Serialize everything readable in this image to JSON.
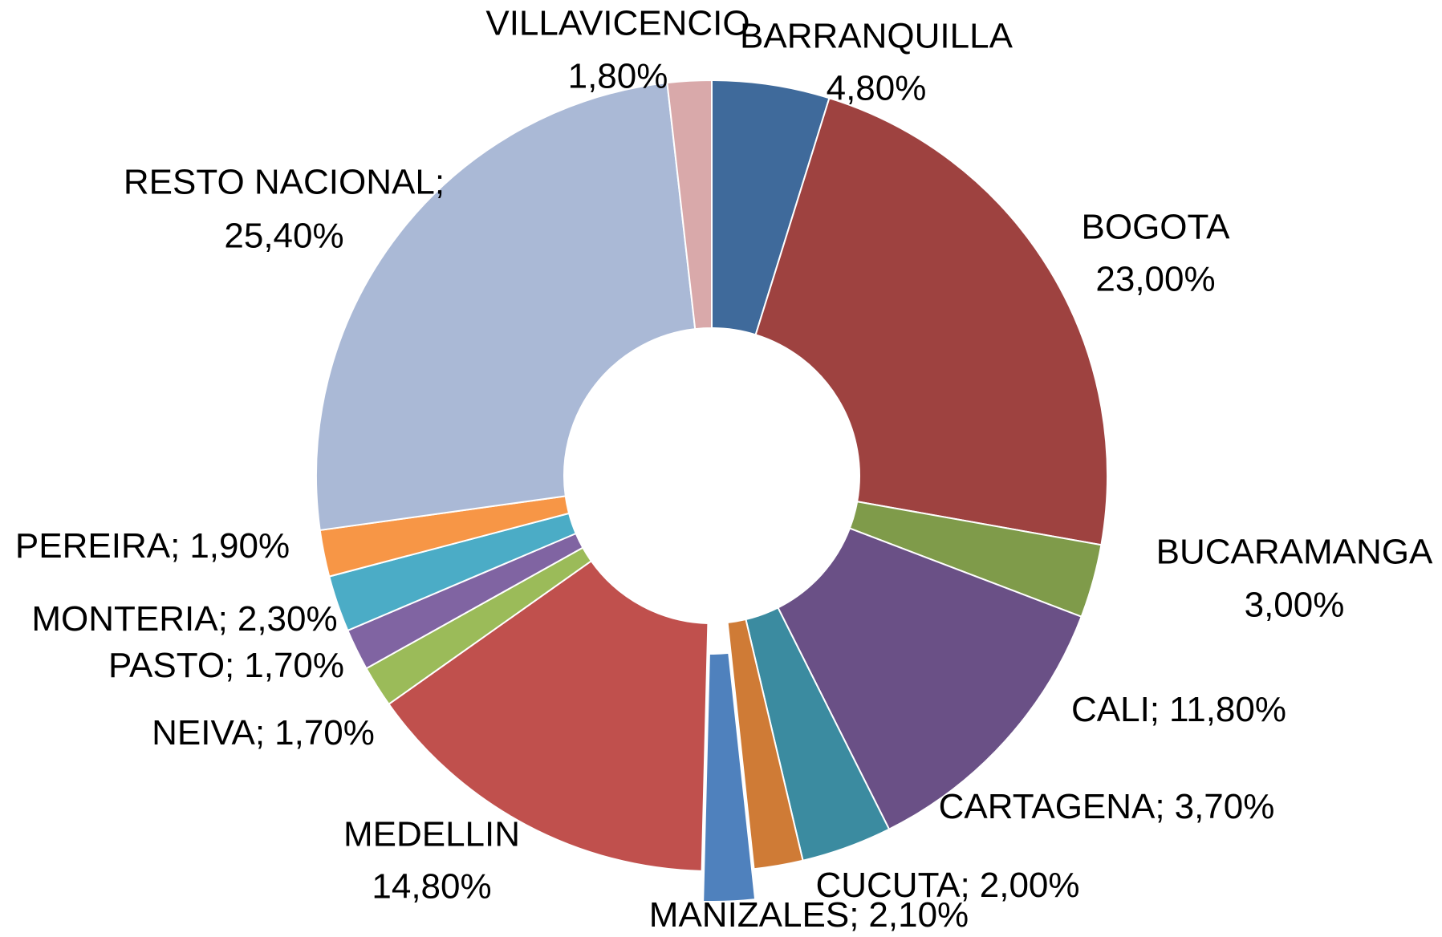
{
  "chart_data": {
    "type": "donut",
    "categories": [
      "BARRANQUILLA",
      "BOGOTA",
      "BUCARAMANGA",
      "CALI;",
      "CARTAGENA;",
      "CUCUTA;",
      "MANIZALES;",
      "MEDELLIN",
      "NEIVA;",
      "PASTO;",
      "MONTERIA;",
      "PEREIRA;",
      "RESTO NACIONAL;",
      "VILLAVICENCIO"
    ],
    "values": [
      4.8,
      23.0,
      3.0,
      11.8,
      3.7,
      2.0,
      2.1,
      14.8,
      1.7,
      1.7,
      2.3,
      1.9,
      25.4,
      1.8
    ],
    "value_labels": [
      "4,80%",
      "23,00%",
      "3,00%",
      "11,80%",
      "3,70%",
      "2,00%",
      "2,10%",
      "14,80%",
      "1,70%",
      "1,70%",
      "2,30%",
      "1,90%",
      "25,40%",
      "1,80%"
    ],
    "colors": [
      "#3f6a9b",
      "#9e4240",
      "#7f9b4a",
      "#6a5086",
      "#3b8ba0",
      "#cf7b36",
      "#4f81bd",
      "#c0504d",
      "#9bbb59",
      "#8064a2",
      "#4bacc6",
      "#f79646",
      "#aab9d6",
      "#d9a9aa"
    ]
  }
}
